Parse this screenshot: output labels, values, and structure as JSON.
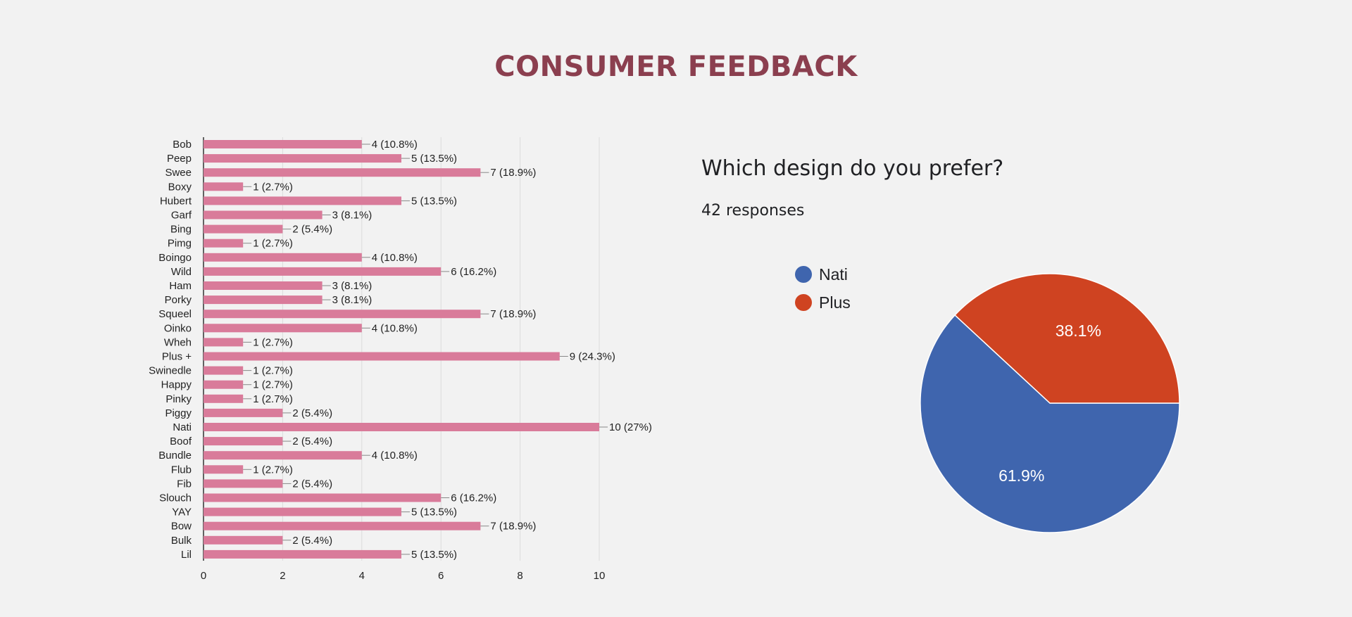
{
  "page": {
    "title": "CONSUMER FEEDBACK"
  },
  "chart_data": [
    {
      "type": "bar",
      "orientation": "horizontal",
      "categories": [
        "Bob",
        "Peep",
        "Swee",
        "Boxy",
        "Hubert",
        "Garf",
        "Bing",
        "Pimg",
        "Boingo",
        "Wild",
        "Ham",
        "Porky",
        "Squeel",
        "Oinko",
        "Wheh",
        "Plus +",
        "Swinedle",
        "Happy",
        "Pinky",
        "Piggy",
        "Nati",
        "Boof",
        "Bundle",
        "Flub",
        "Fib",
        "Slouch",
        "YAY",
        "Bow",
        "Bulk",
        "Lil"
      ],
      "values": [
        4,
        5,
        7,
        1,
        5,
        3,
        2,
        1,
        4,
        6,
        3,
        3,
        7,
        4,
        1,
        9,
        1,
        1,
        1,
        2,
        10,
        2,
        4,
        1,
        2,
        6,
        5,
        7,
        2,
        5
      ],
      "data_labels": [
        "4 (10.8%)",
        "5 (13.5%)",
        "7 (18.9%)",
        "1 (2.7%)",
        "5 (13.5%)",
        "3 (8.1%)",
        "2 (5.4%)",
        "1 (2.7%)",
        "4 (10.8%)",
        "6 (16.2%)",
        "3 (8.1%)",
        "3 (8.1%)",
        "7 (18.9%)",
        "4 (10.8%)",
        "1 (2.7%)",
        "9 (24.3%)",
        "1 (2.7%)",
        "1 (2.7%)",
        "1 (2.7%)",
        "2 (5.4%)",
        "10 (27%)",
        "2 (5.4%)",
        "4 (10.8%)",
        "1 (2.7%)",
        "2 (5.4%)",
        "6 (16.2%)",
        "5 (13.5%)",
        "7 (18.9%)",
        "2 (5.4%)",
        "5 (13.5%)"
      ],
      "xlim": [
        0,
        10
      ],
      "xticks": [
        "0",
        "2",
        "4",
        "6",
        "8",
        "10"
      ],
      "grid": true,
      "bar_color": "#d97b9a"
    },
    {
      "type": "pie",
      "title": "Which design do you prefer?",
      "subtitle": "42 responses",
      "slices": [
        {
          "label": "Nati",
          "value": 61.9,
          "display": "61.9%",
          "color": "#3f65ae"
        },
        {
          "label": "Plus",
          "value": 38.1,
          "display": "38.1%",
          "color": "#cf4321"
        }
      ],
      "legend_position": "left"
    }
  ]
}
